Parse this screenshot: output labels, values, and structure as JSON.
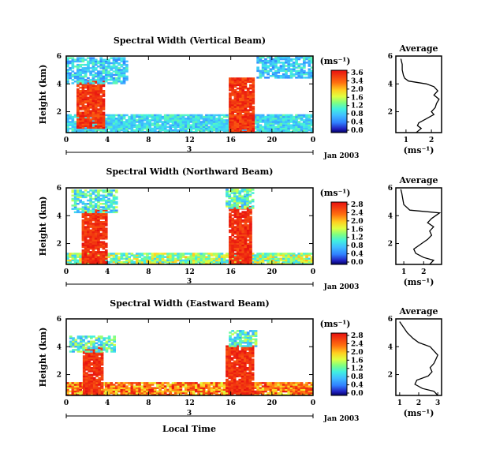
{
  "figure": {
    "xlabel": "Local Time",
    "date_label": "Jan 2003",
    "day_label": "3",
    "unit_label": "(ms⁻¹)",
    "avg_title": "Average",
    "avg_xlabel": "(ms⁻¹)"
  },
  "chart_data": [
    {
      "type": "heatmap",
      "title": "Spectral Width (Vertical Beam)",
      "ylabel": "Height (km)",
      "xlabel": "",
      "x_ticks": [
        "0",
        "4",
        "8",
        "12",
        "16",
        "20",
        "0"
      ],
      "y_ticks": [
        "2",
        "4",
        "6"
      ],
      "xlim": [
        0,
        24
      ],
      "ylim": [
        0.5,
        6
      ],
      "colorbar": {
        "ticks": [
          "3.6",
          "3.4",
          "2.0",
          "1.6",
          "1.2",
          "0.8",
          "0.4",
          "0.0"
        ],
        "range": [
          0.0,
          3.6
        ]
      },
      "features": [
        {
          "desc": "low layer",
          "t": [
            0,
            24
          ],
          "h": [
            0.5,
            1.8
          ],
          "level": "0.8-1.6"
        },
        {
          "desc": "convective column",
          "t": [
            1.0,
            3.7
          ],
          "h": [
            0.8,
            4.2
          ],
          "level": "3.0-3.6"
        },
        {
          "desc": "convective column",
          "t": [
            15.8,
            18.2
          ],
          "h": [
            0.5,
            4.4
          ],
          "level": "3.0-3.6"
        },
        {
          "desc": "upper layer",
          "t": [
            0,
            5.8
          ],
          "h": [
            4.0,
            5.9
          ],
          "level": "0.6-1.6"
        },
        {
          "desc": "upper layer",
          "t": [
            18.5,
            24
          ],
          "h": [
            4.4,
            5.9
          ],
          "level": "0.6-1.6"
        }
      ],
      "average_profile": {
        "xlabel": "(ms⁻¹)",
        "x_ticks": [
          "1",
          "2"
        ],
        "xlim": [
          0.6,
          2.4
        ],
        "height": [
          0.5,
          0.8,
          1.0,
          1.2,
          1.5,
          1.8,
          2.0,
          2.3,
          2.6,
          2.9,
          3.2,
          3.5,
          3.8,
          4.0,
          4.2,
          4.4,
          4.6,
          5.0,
          5.4,
          5.8
        ],
        "width": [
          1.4,
          1.6,
          1.45,
          1.5,
          1.8,
          2.1,
          2.0,
          2.15,
          2.2,
          2.3,
          2.1,
          2.25,
          2.1,
          1.8,
          1.1,
          0.95,
          0.9,
          0.85,
          0.85,
          0.8
        ]
      }
    },
    {
      "type": "heatmap",
      "title": "Spectral Width (Northward Beam)",
      "ylabel": "Height (km)",
      "xlabel": "",
      "x_ticks": [
        "0",
        "4",
        "8",
        "12",
        "16",
        "20",
        "0"
      ],
      "y_ticks": [
        "2",
        "4",
        "6"
      ],
      "xlim": [
        0,
        24
      ],
      "ylim": [
        0.5,
        6
      ],
      "colorbar": {
        "ticks": [
          "2.8",
          "2.4",
          "2.0",
          "1.6",
          "1.2",
          "0.8",
          "0.4",
          "0.0"
        ],
        "range": [
          0.0,
          2.8
        ]
      },
      "features": [
        {
          "desc": "low layer",
          "t": [
            0,
            24
          ],
          "h": [
            0.5,
            1.3
          ],
          "level": "0.8-2.0"
        },
        {
          "desc": "convective column",
          "t": [
            1.5,
            3.8
          ],
          "h": [
            0.5,
            4.4
          ],
          "level": "2.4-2.8"
        },
        {
          "desc": "convective column",
          "t": [
            15.8,
            18.0
          ],
          "h": [
            0.5,
            4.6
          ],
          "level": "2.4-2.8"
        },
        {
          "desc": "upper layer",
          "t": [
            0.5,
            5.0
          ],
          "h": [
            4.2,
            5.8
          ],
          "level": "0.6-1.6"
        },
        {
          "desc": "upper layer",
          "t": [
            15.5,
            18.2
          ],
          "h": [
            4.5,
            5.9
          ],
          "level": "0.6-1.6"
        }
      ],
      "average_profile": {
        "xlabel": "(ms⁻¹)",
        "x_ticks": [
          "1",
          "2"
        ],
        "xlim": [
          0.6,
          2.9
        ],
        "height": [
          0.5,
          0.8,
          1.0,
          1.3,
          1.6,
          2.0,
          2.3,
          2.6,
          2.9,
          3.2,
          3.5,
          3.8,
          4.0,
          4.2,
          4.4,
          4.8,
          5.2,
          5.6,
          5.9
        ],
        "width": [
          2.3,
          2.5,
          2.0,
          1.6,
          1.5,
          1.9,
          2.2,
          2.4,
          2.3,
          2.5,
          2.2,
          2.4,
          2.6,
          2.8,
          1.3,
          1.0,
          0.95,
          0.9,
          0.85
        ]
      }
    },
    {
      "type": "heatmap",
      "title": "Spectral Width (Eastward Beam)",
      "ylabel": "Height (km)",
      "xlabel": "Local Time",
      "x_ticks": [
        "0",
        "4",
        "8",
        "12",
        "16",
        "20",
        "0"
      ],
      "y_ticks": [
        "2",
        "4",
        "6"
      ],
      "xlim": [
        0,
        24
      ],
      "ylim": [
        0.5,
        6
      ],
      "colorbar": {
        "ticks": [
          "2.8",
          "2.4",
          "2.0",
          "1.6",
          "1.2",
          "0.8",
          "0.4",
          "0.0"
        ],
        "range": [
          0.0,
          2.8
        ]
      },
      "features": [
        {
          "desc": "low layer",
          "t": [
            0,
            24
          ],
          "h": [
            0.5,
            1.4
          ],
          "level": "1.6-2.8"
        },
        {
          "desc": "convective column",
          "t": [
            1.6,
            3.6
          ],
          "h": [
            0.5,
            3.9
          ],
          "level": "2.4-2.8"
        },
        {
          "desc": "convective column",
          "t": [
            15.5,
            18.2
          ],
          "h": [
            0.5,
            4.1
          ],
          "level": "2.4-2.8"
        },
        {
          "desc": "upper layer",
          "t": [
            0.3,
            4.8
          ],
          "h": [
            3.6,
            4.8
          ],
          "level": "0.6-1.6"
        },
        {
          "desc": "upper layer",
          "t": [
            15.8,
            18.5
          ],
          "h": [
            4.0,
            5.2
          ],
          "level": "0.6-1.6"
        }
      ],
      "average_profile": {
        "xlabel": "(ms⁻¹)",
        "x_ticks": [
          "1",
          "2",
          "3"
        ],
        "xlim": [
          0.8,
          3.2
        ],
        "height": [
          0.5,
          0.8,
          1.0,
          1.3,
          1.6,
          1.9,
          2.2,
          2.5,
          2.8,
          3.1,
          3.4,
          3.7,
          4.0,
          4.3,
          4.6,
          5.0,
          5.4,
          5.8
        ],
        "width": [
          3.0,
          2.8,
          2.2,
          1.8,
          1.9,
          2.5,
          2.7,
          2.6,
          2.8,
          2.9,
          3.0,
          2.8,
          2.6,
          2.0,
          1.7,
          1.4,
          1.2,
          1.0
        ]
      }
    }
  ]
}
